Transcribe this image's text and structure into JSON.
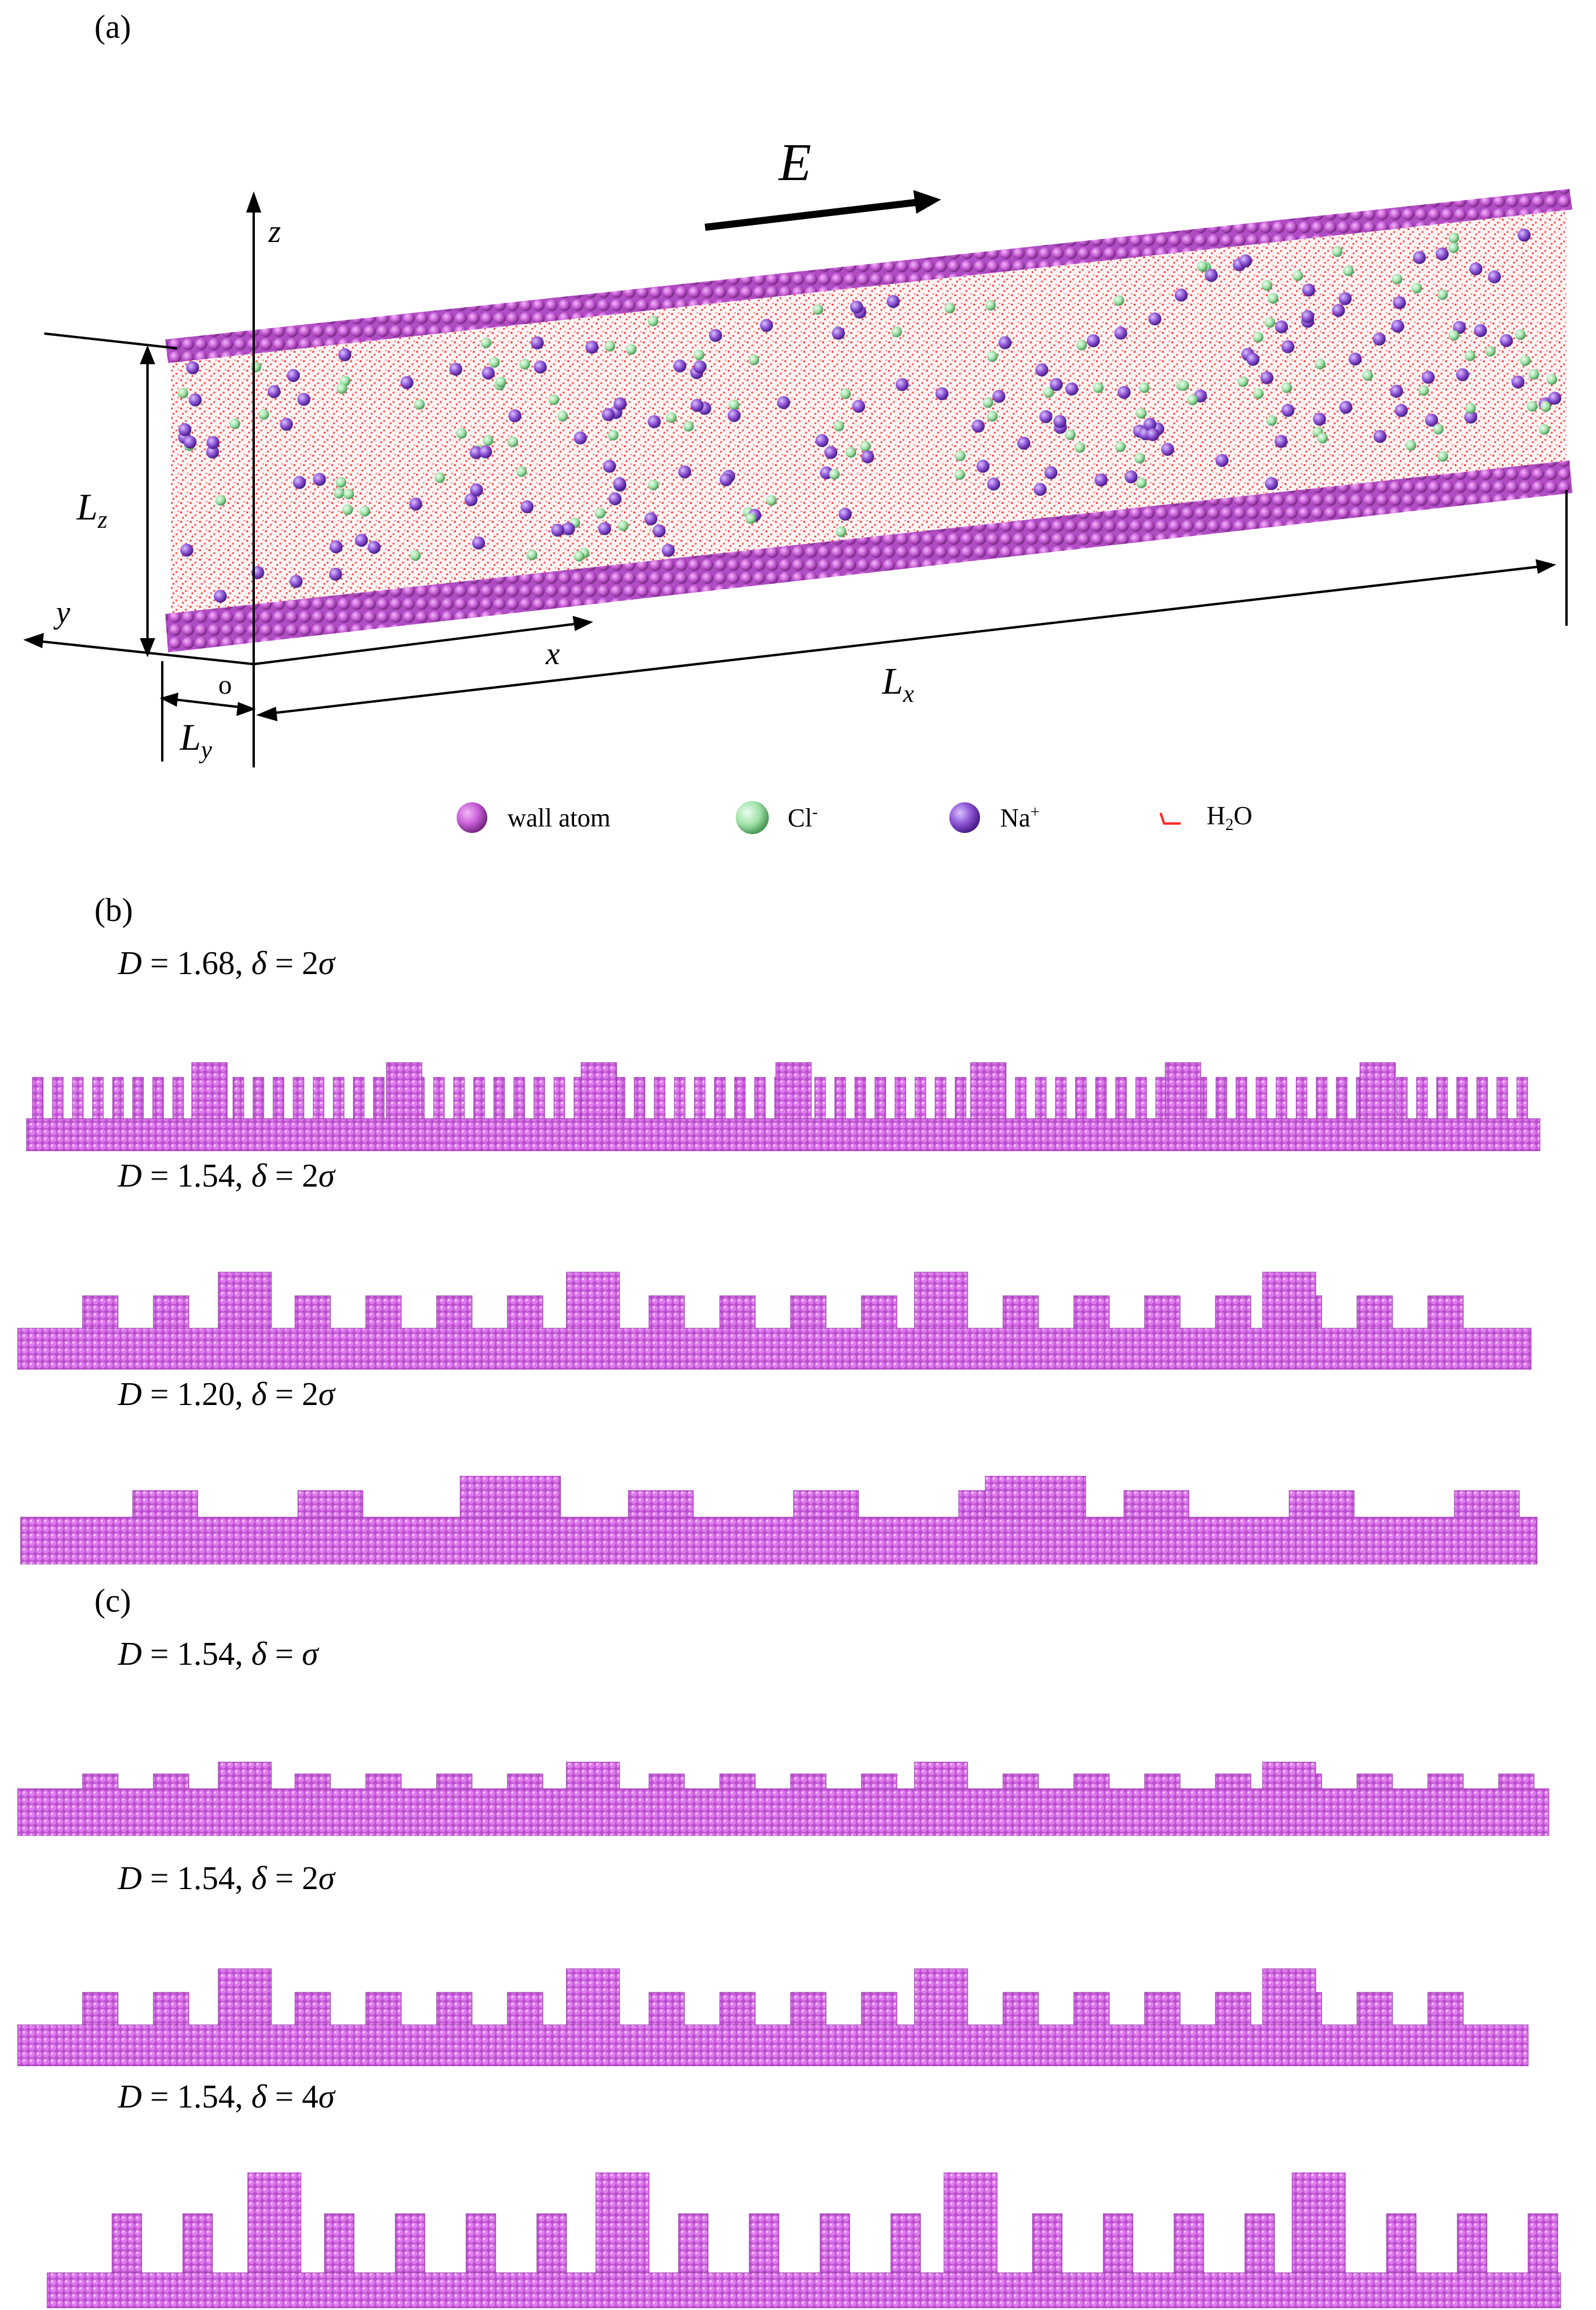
{
  "panel_a": {
    "label": "(a)",
    "field_label": "E",
    "axis_labels": {
      "z": "z",
      "y": "y",
      "x": "x",
      "origin": "o"
    },
    "dimension_labels": {
      "Lz_main": "L",
      "Lz_sub": "z",
      "Ly_main": "L",
      "Ly_sub": "y",
      "Lx_main": "L",
      "Lx_sub": "x"
    },
    "colors": {
      "wall": "#c95fd8",
      "cl": "#9fe0a6",
      "na": "#8f55d6",
      "water": "#ff3b3b"
    },
    "legend": [
      {
        "icon": "wall-atom-sphere",
        "label": "wall atom"
      },
      {
        "icon": "cl-ion-sphere",
        "label": "Cl",
        "sup": "-"
      },
      {
        "icon": "na-ion-sphere",
        "label": "Na",
        "sup": "+"
      },
      {
        "icon": "water-molecule-icon",
        "label_pre": "H",
        "sub": "2",
        "label_post": "O"
      }
    ]
  },
  "panel_b": {
    "label": "(b)",
    "cases": [
      {
        "D_label": "D",
        "D_value": " = 1.68, ",
        "delta_sym": "δ",
        "delta_value": " = 2",
        "sigma_sym": "σ",
        "D": 1.68,
        "delta": 2
      },
      {
        "D_label": "D",
        "D_value": " = 1.54, ",
        "delta_sym": "δ",
        "delta_value": " = 2",
        "sigma_sym": "σ",
        "D": 1.54,
        "delta": 2
      },
      {
        "D_label": "D",
        "D_value": " = 1.20, ",
        "delta_sym": "δ",
        "delta_value": " = 2",
        "sigma_sym": "σ",
        "D": 1.2,
        "delta": 2
      }
    ]
  },
  "panel_c": {
    "label": "(c)",
    "cases": [
      {
        "D_label": "D",
        "D_value": " = 1.54, ",
        "delta_sym": "δ",
        "delta_value": " = ",
        "sigma_sym": "σ",
        "D": 1.54,
        "delta": 1
      },
      {
        "D_label": "D",
        "D_value": " = 1.54, ",
        "delta_sym": "δ",
        "delta_value": " = 2",
        "sigma_sym": "σ",
        "D": 1.54,
        "delta": 2
      },
      {
        "D_label": "D",
        "D_value": " = 1.54, ",
        "delta_sym": "δ",
        "delta_value": " = 4",
        "sigma_sym": "σ",
        "D": 1.54,
        "delta": 4
      }
    ]
  }
}
